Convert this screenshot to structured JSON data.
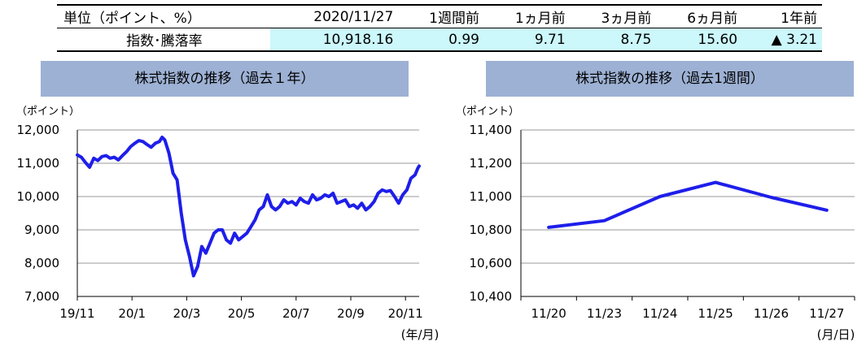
{
  "table": {
    "header": [
      "単位（ポイント、%）",
      "2020/11/27",
      "1週間前",
      "1ヵ月前",
      "3ヵ月前",
      "6ヵ月前",
      "1年前"
    ],
    "row_label": "指数･騰落率",
    "values": [
      "10,918.16",
      "0.99",
      "9.71",
      "8.75",
      "15.60",
      "▲ 3.21"
    ]
  },
  "colors": {
    "banner": "#9db1d4",
    "highlight": "#ccf7fb",
    "line": "#1e1eea",
    "grid": "#999999"
  },
  "chart_data": [
    {
      "type": "line",
      "title": "株式指数の推移（過去１年）",
      "unit_label": "（ポイント）",
      "xunit_label": "(年/月)",
      "ylim": [
        7000,
        12000
      ],
      "yticks": [
        7000,
        8000,
        9000,
        10000,
        11000,
        12000
      ],
      "ytick_labels": [
        "7,000",
        "8,000",
        "9,000",
        "10,000",
        "11,000",
        "12,000"
      ],
      "xlim": [
        0,
        12.5
      ],
      "xticks": [
        0,
        2,
        4,
        6,
        8,
        10,
        12
      ],
      "xtick_labels": [
        "19/11",
        "20/1",
        "20/3",
        "20/5",
        "20/7",
        "20/9",
        "20/11"
      ],
      "x": [
        0.0,
        0.15,
        0.3,
        0.45,
        0.6,
        0.75,
        0.9,
        1.05,
        1.2,
        1.35,
        1.5,
        1.65,
        1.8,
        1.95,
        2.1,
        2.25,
        2.4,
        2.55,
        2.7,
        2.85,
        3.0,
        3.1,
        3.2,
        3.35,
        3.5,
        3.65,
        3.8,
        3.95,
        4.1,
        4.25,
        4.4,
        4.55,
        4.7,
        4.85,
        5.0,
        5.15,
        5.3,
        5.45,
        5.6,
        5.75,
        5.9,
        6.05,
        6.2,
        6.35,
        6.5,
        6.65,
        6.8,
        6.95,
        7.1,
        7.25,
        7.4,
        7.55,
        7.7,
        7.85,
        8.0,
        8.15,
        8.3,
        8.45,
        8.6,
        8.75,
        8.9,
        9.05,
        9.2,
        9.35,
        9.5,
        9.65,
        9.8,
        9.95,
        10.1,
        10.25,
        10.4,
        10.55,
        10.7,
        10.85,
        11.0,
        11.15,
        11.3,
        11.45,
        11.6,
        11.75,
        11.9,
        12.05,
        12.2,
        12.35,
        12.45,
        12.5
      ],
      "y": [
        11250,
        11180,
        11020,
        10880,
        11150,
        11080,
        11200,
        11230,
        11150,
        11180,
        11100,
        11230,
        11350,
        11500,
        11600,
        11680,
        11650,
        11560,
        11480,
        11600,
        11650,
        11780,
        11700,
        11300,
        10700,
        10500,
        9500,
        8700,
        8200,
        7620,
        7900,
        8500,
        8300,
        8600,
        8900,
        9000,
        9000,
        8700,
        8600,
        8900,
        8700,
        8800,
        8900,
        9100,
        9300,
        9600,
        9700,
        10050,
        9700,
        9600,
        9700,
        9900,
        9800,
        9850,
        9750,
        9950,
        9850,
        9800,
        10050,
        9900,
        9950,
        10050,
        10000,
        10100,
        9800,
        9850,
        9900,
        9700,
        9750,
        9650,
        9800,
        9600,
        9700,
        9850,
        10100,
        10200,
        10150,
        10180,
        10000,
        9800,
        10050,
        10200,
        10550,
        10650,
        10850,
        10918
      ]
    },
    {
      "type": "line",
      "title": "株式指数の推移（過去1週間）",
      "unit_label": "（ポイント）",
      "xunit_label": "(月/日)",
      "categories": [
        "11/20",
        "11/23",
        "11/24",
        "11/25",
        "11/26",
        "11/27"
      ],
      "values": [
        10815,
        10855,
        11000,
        11085,
        10995,
        10918
      ],
      "ylim": [
        10400,
        11400
      ],
      "yticks": [
        10400,
        10600,
        10800,
        11000,
        11200,
        11400
      ],
      "ytick_labels": [
        "10,400",
        "10,600",
        "10,800",
        "11,000",
        "11,200",
        "11,400"
      ]
    }
  ]
}
